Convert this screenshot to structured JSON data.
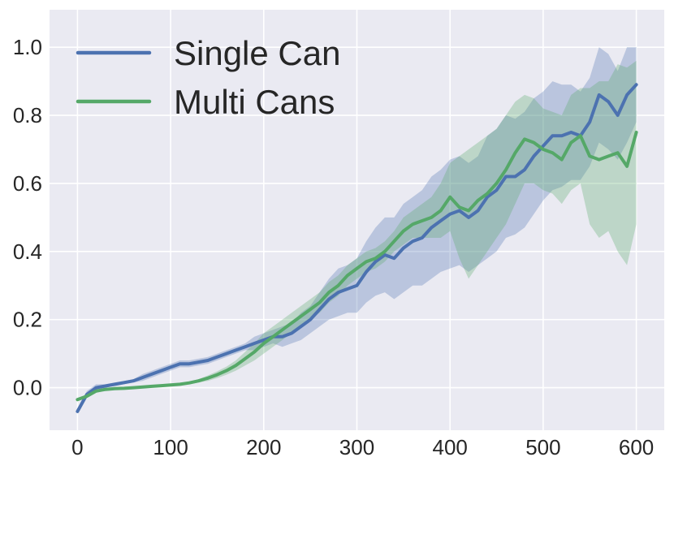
{
  "chart_data": {
    "type": "line",
    "title": "",
    "xlabel": "",
    "ylabel": "",
    "xlim": [
      -30,
      630
    ],
    "ylim": [
      -0.125,
      1.11
    ],
    "xticks": [
      0,
      100,
      200,
      300,
      400,
      500,
      600
    ],
    "yticks": [
      0.0,
      0.2,
      0.4,
      0.6,
      0.8,
      1.0
    ],
    "xtick_labels": [
      "0",
      "100",
      "200",
      "300",
      "400",
      "500",
      "600"
    ],
    "ytick_labels": [
      "0.0",
      "0.2",
      "0.4",
      "0.6",
      "0.8",
      "1.0"
    ],
    "grid": true,
    "legend_position": "upper-left",
    "background": "#eaeaf2",
    "series": [
      {
        "name": "Single Can",
        "color": "#4c72b0",
        "x": [
          0,
          10,
          20,
          30,
          40,
          50,
          60,
          70,
          80,
          90,
          100,
          110,
          120,
          130,
          140,
          150,
          160,
          170,
          180,
          190,
          200,
          210,
          220,
          230,
          240,
          250,
          260,
          270,
          280,
          290,
          300,
          310,
          320,
          330,
          340,
          350,
          360,
          370,
          380,
          390,
          400,
          410,
          420,
          430,
          440,
          450,
          460,
          470,
          480,
          490,
          500,
          510,
          520,
          530,
          540,
          550,
          560,
          570,
          580,
          590,
          600
        ],
        "y": [
          -0.07,
          -0.02,
          0.0,
          0.005,
          0.01,
          0.015,
          0.02,
          0.03,
          0.04,
          0.05,
          0.06,
          0.07,
          0.07,
          0.075,
          0.08,
          0.09,
          0.1,
          0.11,
          0.12,
          0.13,
          0.14,
          0.15,
          0.15,
          0.16,
          0.18,
          0.2,
          0.23,
          0.26,
          0.28,
          0.29,
          0.3,
          0.34,
          0.37,
          0.39,
          0.38,
          0.41,
          0.43,
          0.44,
          0.47,
          0.49,
          0.51,
          0.52,
          0.5,
          0.52,
          0.56,
          0.58,
          0.62,
          0.62,
          0.64,
          0.68,
          0.71,
          0.74,
          0.74,
          0.75,
          0.74,
          0.78,
          0.86,
          0.84,
          0.8,
          0.86,
          0.89
        ],
        "band_lower": [
          -0.075,
          -0.03,
          -0.01,
          0.0,
          0.005,
          0.01,
          0.015,
          0.02,
          0.03,
          0.04,
          0.05,
          0.06,
          0.06,
          0.065,
          0.07,
          0.08,
          0.09,
          0.1,
          0.11,
          0.11,
          0.12,
          0.13,
          0.12,
          0.13,
          0.14,
          0.16,
          0.18,
          0.2,
          0.21,
          0.22,
          0.22,
          0.25,
          0.27,
          0.28,
          0.26,
          0.28,
          0.3,
          0.3,
          0.32,
          0.34,
          0.35,
          0.36,
          0.34,
          0.36,
          0.38,
          0.4,
          0.44,
          0.45,
          0.47,
          0.51,
          0.55,
          0.58,
          0.59,
          0.61,
          0.61,
          0.65,
          0.72,
          0.7,
          0.67,
          0.72,
          0.78
        ],
        "band_upper": [
          -0.065,
          -0.01,
          0.01,
          0.01,
          0.015,
          0.02,
          0.025,
          0.04,
          0.05,
          0.06,
          0.07,
          0.08,
          0.08,
          0.085,
          0.09,
          0.1,
          0.11,
          0.12,
          0.13,
          0.15,
          0.16,
          0.17,
          0.18,
          0.19,
          0.22,
          0.24,
          0.28,
          0.32,
          0.35,
          0.36,
          0.38,
          0.43,
          0.47,
          0.5,
          0.5,
          0.54,
          0.56,
          0.58,
          0.62,
          0.64,
          0.67,
          0.68,
          0.66,
          0.68,
          0.74,
          0.76,
          0.8,
          0.79,
          0.81,
          0.85,
          0.87,
          0.9,
          0.89,
          0.89,
          0.87,
          0.91,
          1.0,
          0.98,
          0.93,
          1.0,
          1.0
        ]
      },
      {
        "name": "Multi Cans",
        "color": "#55a868",
        "x": [
          0,
          10,
          20,
          30,
          40,
          50,
          60,
          70,
          80,
          90,
          100,
          110,
          120,
          130,
          140,
          150,
          160,
          170,
          180,
          190,
          200,
          210,
          220,
          230,
          240,
          250,
          260,
          270,
          280,
          290,
          300,
          310,
          320,
          330,
          340,
          350,
          360,
          370,
          380,
          390,
          400,
          410,
          420,
          430,
          440,
          450,
          460,
          470,
          480,
          490,
          500,
          510,
          520,
          530,
          540,
          550,
          560,
          570,
          580,
          590,
          600
        ],
        "y": [
          -0.035,
          -0.025,
          -0.01,
          -0.005,
          -0.003,
          -0.002,
          0.0,
          0.002,
          0.004,
          0.006,
          0.008,
          0.01,
          0.014,
          0.02,
          0.028,
          0.038,
          0.05,
          0.065,
          0.085,
          0.105,
          0.13,
          0.15,
          0.17,
          0.19,
          0.21,
          0.23,
          0.25,
          0.28,
          0.3,
          0.33,
          0.35,
          0.37,
          0.38,
          0.4,
          0.43,
          0.46,
          0.48,
          0.49,
          0.5,
          0.52,
          0.56,
          0.53,
          0.52,
          0.55,
          0.57,
          0.6,
          0.64,
          0.69,
          0.73,
          0.72,
          0.7,
          0.69,
          0.67,
          0.72,
          0.74,
          0.68,
          0.67,
          0.68,
          0.69,
          0.65,
          0.75
        ],
        "band_lower": [
          -0.04,
          -0.03,
          -0.015,
          -0.008,
          -0.005,
          -0.004,
          -0.002,
          0.0,
          0.002,
          0.004,
          0.006,
          0.008,
          0.01,
          0.015,
          0.02,
          0.028,
          0.038,
          0.05,
          0.065,
          0.08,
          0.1,
          0.12,
          0.14,
          0.16,
          0.18,
          0.2,
          0.22,
          0.25,
          0.27,
          0.3,
          0.32,
          0.34,
          0.35,
          0.37,
          0.4,
          0.42,
          0.44,
          0.44,
          0.44,
          0.44,
          0.46,
          0.38,
          0.32,
          0.36,
          0.4,
          0.44,
          0.48,
          0.54,
          0.6,
          0.6,
          0.58,
          0.57,
          0.54,
          0.58,
          0.6,
          0.48,
          0.44,
          0.46,
          0.4,
          0.36,
          0.48
        ],
        "band_upper": [
          -0.03,
          -0.02,
          -0.005,
          -0.002,
          -0.001,
          0.0,
          0.002,
          0.004,
          0.006,
          0.008,
          0.01,
          0.012,
          0.018,
          0.025,
          0.036,
          0.048,
          0.062,
          0.08,
          0.105,
          0.13,
          0.16,
          0.18,
          0.2,
          0.22,
          0.24,
          0.26,
          0.28,
          0.31,
          0.33,
          0.36,
          0.38,
          0.4,
          0.41,
          0.43,
          0.46,
          0.5,
          0.52,
          0.54,
          0.56,
          0.6,
          0.66,
          0.68,
          0.7,
          0.72,
          0.74,
          0.76,
          0.8,
          0.84,
          0.86,
          0.85,
          0.82,
          0.81,
          0.8,
          0.86,
          0.88,
          0.88,
          0.9,
          0.9,
          0.95,
          0.94,
          0.96
        ]
      }
    ]
  }
}
